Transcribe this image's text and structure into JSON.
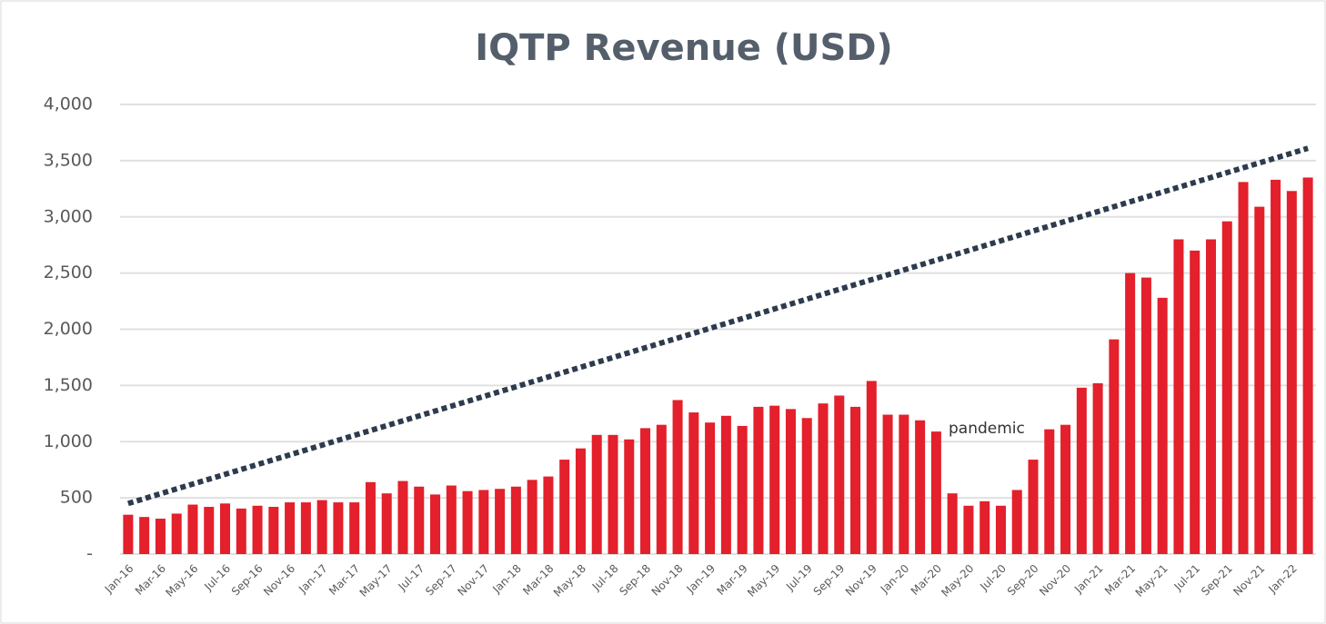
{
  "chart_data": {
    "type": "bar",
    "title": "IQTP Revenue (USD)",
    "categories": [
      "Jan-16",
      null,
      "Mar-16",
      null,
      "May-16",
      null,
      "Jul-16",
      null,
      "Sep-16",
      null,
      "Nov-16",
      null,
      "Jan-17",
      null,
      "Mar-17",
      null,
      "May-17",
      null,
      "Jul-17",
      null,
      "Sep-17",
      null,
      "Nov-17",
      null,
      "Jan-18",
      null,
      "Mar-18",
      null,
      "May-18",
      null,
      "Jul-18",
      null,
      "Sep-18",
      null,
      "Nov-18",
      null,
      "Jan-19",
      null,
      "Mar-19",
      null,
      "May-19",
      null,
      "Jul-19",
      null,
      "Sep-19",
      null,
      "Nov-19",
      null,
      "Jan-20",
      null,
      "Mar-20",
      null,
      "May-20",
      null,
      "Jul-20",
      null,
      "Sep-20",
      null,
      "Nov-20",
      null,
      "Jan-21",
      null,
      "Mar-21",
      null,
      "May-21",
      null,
      "Jul-21",
      null,
      "Sep-21",
      null,
      "Nov-21",
      null,
      "Jan-22",
      null
    ],
    "values": [
      350,
      330,
      315,
      360,
      440,
      420,
      450,
      405,
      430,
      420,
      460,
      460,
      480,
      460,
      460,
      640,
      540,
      650,
      600,
      530,
      610,
      560,
      570,
      580,
      600,
      660,
      690,
      840,
      940,
      1060,
      1060,
      1020,
      1120,
      1150,
      1370,
      1260,
      1170,
      1230,
      1140,
      1310,
      1320,
      1290,
      1210,
      1340,
      1410,
      1310,
      1540,
      1240,
      1240,
      1190,
      1090,
      540,
      430,
      470,
      430,
      570,
      840,
      1110,
      1150,
      1480,
      1520,
      1910,
      2500,
      2460,
      2280,
      2800,
      2700,
      2800,
      2960,
      3310,
      3090,
      3330,
      3230,
      3350
    ],
    "color": "#e3202b",
    "trend": {
      "values": [
        450,
        3610
      ],
      "color": "#2e3b4e"
    },
    "annotation": "pandemic",
    "ylim": [
      0,
      4000
    ],
    "yticks": [
      {
        "value": 0,
        "label": "-"
      },
      500,
      {
        "value": 1000,
        "label": "1,000"
      },
      {
        "value": 1500,
        "label": "1,500"
      },
      {
        "value": 2000,
        "label": "2,000"
      },
      {
        "value": 2500,
        "label": "2,500"
      },
      {
        "value": 3000,
        "label": "3,000"
      },
      {
        "value": 3500,
        "label": "3,500"
      },
      {
        "value": 4000,
        "label": "4,000"
      }
    ],
    "grid": true
  }
}
